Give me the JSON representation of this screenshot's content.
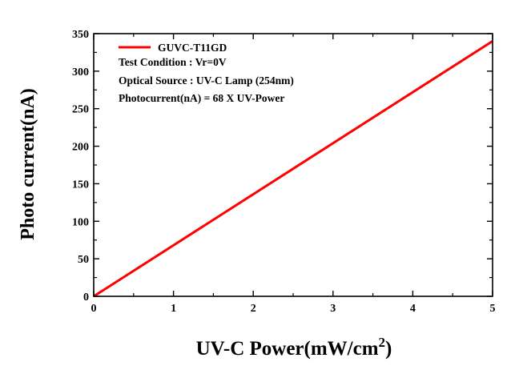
{
  "chart_data": {
    "type": "line",
    "xlabel": "UV-C Power(mW/cm",
    "xlabel_superscript": "2",
    "xlabel_suffix": ")",
    "ylabel": "Photo current(nA)",
    "xlim": [
      0,
      5
    ],
    "ylim": [
      0,
      350
    ],
    "x_ticks": [
      0,
      1,
      2,
      3,
      4,
      5
    ],
    "y_ticks": [
      0,
      50,
      100,
      150,
      200,
      250,
      300,
      350
    ],
    "x_tick_labels": [
      "0",
      "1",
      "2",
      "3",
      "4",
      "5"
    ],
    "y_tick_labels": [
      "0",
      "50",
      "100",
      "150",
      "200",
      "250",
      "300",
      "350"
    ],
    "grid": false,
    "legend_position": "top-left",
    "series": [
      {
        "name": "GUVC-T11GD",
        "color": "#ff0000",
        "x": [
          0,
          5
        ],
        "y": [
          0,
          340
        ]
      }
    ],
    "annotations": [
      "Test Condition : Vr=0V",
      "Optical Source : UV-C Lamp (254nm)",
      "Photocurrent(nA) = 68 X UV-Power"
    ]
  }
}
